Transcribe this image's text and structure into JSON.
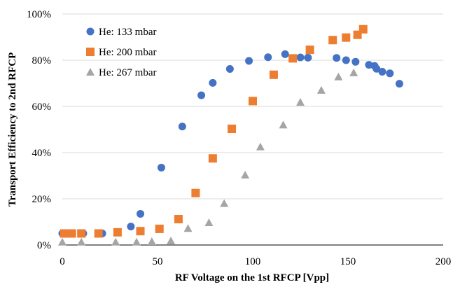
{
  "colors": {
    "series_133": "#4472C4",
    "series_200": "#ED7D31",
    "series_267": "#A5A5A5",
    "grid": "#D9D9D9",
    "axis": "#000000"
  },
  "chart_data": {
    "type": "scatter",
    "title": "",
    "xlabel": "RF  Voltage on the 1st RFCP [Vpp]",
    "ylabel": "Transport Efficiency to 2nd RFCP",
    "xlim": [
      0,
      200
    ],
    "ylim": [
      0,
      100
    ],
    "x_ticks": [
      "0",
      "50",
      "100",
      "150",
      "200"
    ],
    "y_ticks": [
      "0%",
      "20%",
      "40%",
      "60%",
      "80%",
      "100%"
    ],
    "grid": "horizontal",
    "legend_position": "top-left",
    "series": [
      {
        "name": "He: 133 mbar",
        "marker": "circle",
        "color": "#4472C4",
        "points": [
          [
            0,
            5
          ],
          [
            2,
            5
          ],
          [
            5,
            5
          ],
          [
            11,
            5
          ],
          [
            21,
            5
          ],
          [
            29,
            5.5
          ],
          [
            36,
            8
          ],
          [
            41,
            13.5
          ],
          [
            52,
            33.5
          ],
          [
            63,
            51.3
          ],
          [
            73,
            64.8
          ],
          [
            79,
            70.2
          ],
          [
            88,
            76.2
          ],
          [
            98,
            79.7
          ],
          [
            108,
            81.3
          ],
          [
            117,
            82.6
          ],
          [
            125,
            81.2
          ],
          [
            129,
            81.1
          ],
          [
            144,
            81
          ],
          [
            149,
            80
          ],
          [
            154,
            79.3
          ],
          [
            161,
            78
          ],
          [
            164,
            77.5
          ],
          [
            165,
            76.3
          ],
          [
            168,
            75
          ],
          [
            172,
            74.3
          ],
          [
            177,
            69.8
          ]
        ]
      },
      {
        "name": "He: 200 mbar",
        "marker": "square",
        "color": "#ED7D31",
        "points": [
          [
            1,
            5
          ],
          [
            3,
            5
          ],
          [
            5,
            5
          ],
          [
            10,
            5
          ],
          [
            19,
            5
          ],
          [
            29,
            5.5
          ],
          [
            41,
            6
          ],
          [
            51,
            7
          ],
          [
            61,
            11.2
          ],
          [
            70,
            22.5
          ],
          [
            79,
            37.5
          ],
          [
            89,
            50.3
          ],
          [
            100,
            62.3
          ],
          [
            111,
            73.7
          ],
          [
            121,
            80.8
          ],
          [
            130,
            84.5
          ],
          [
            142,
            88.7
          ],
          [
            149,
            89.8
          ],
          [
            155,
            91
          ],
          [
            158,
            93.4
          ]
        ]
      },
      {
        "name": "He: 267 mbar",
        "marker": "triangle",
        "color": "#A5A5A5",
        "points": [
          [
            0,
            1.3
          ],
          [
            10,
            1.3
          ],
          [
            28,
            1.3
          ],
          [
            39,
            1.3
          ],
          [
            47,
            1.5
          ],
          [
            57,
            1.8
          ],
          [
            66,
            7.2
          ],
          [
            77,
            9.7
          ],
          [
            85,
            18
          ],
          [
            96,
            30.3
          ],
          [
            104,
            42.5
          ],
          [
            116,
            52
          ],
          [
            125,
            61.8
          ],
          [
            136,
            67
          ],
          [
            145,
            72.8
          ],
          [
            153,
            74.6
          ]
        ]
      }
    ]
  }
}
